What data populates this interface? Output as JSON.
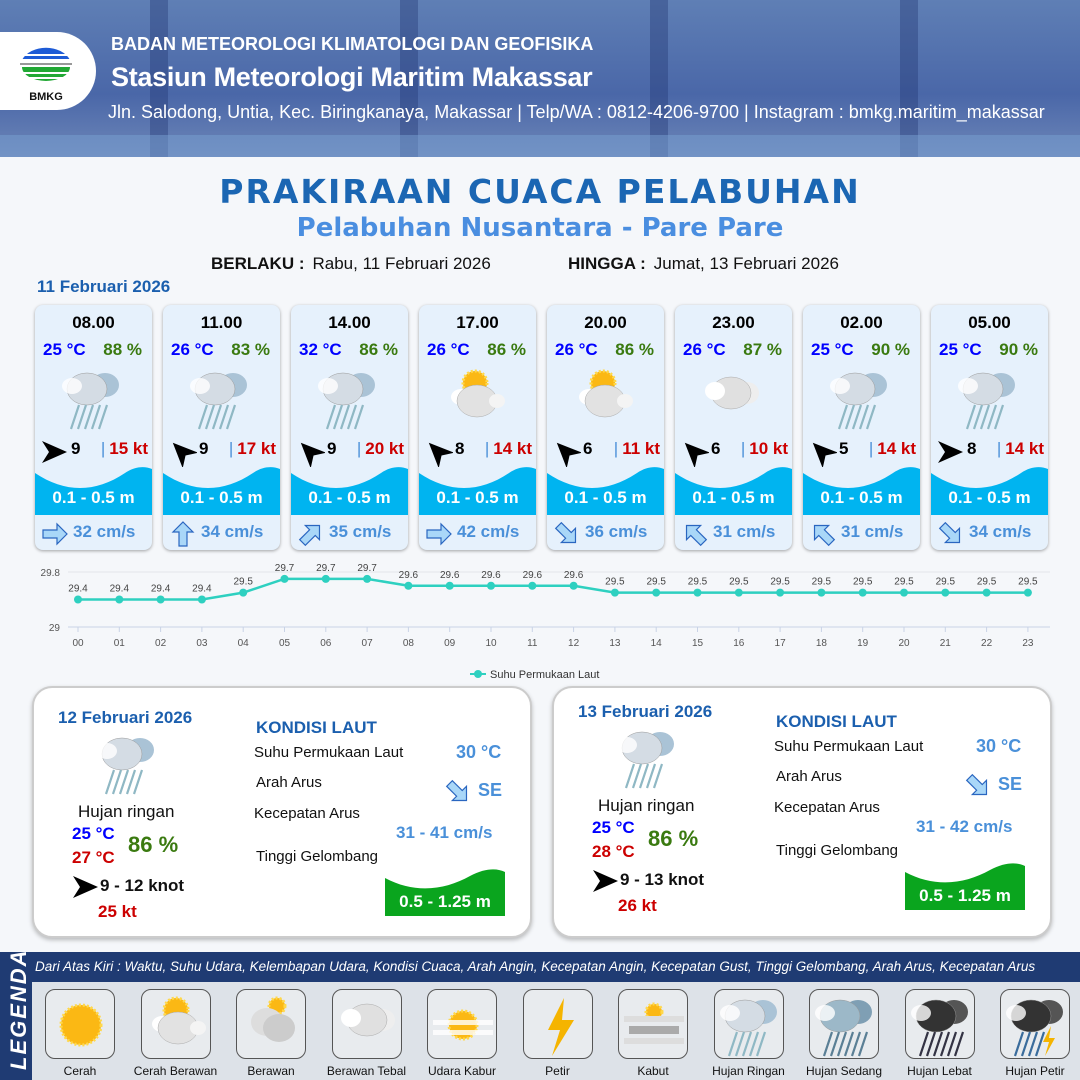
{
  "header": {
    "org": "BADAN METEOROLOGI KLIMATOLOGI DAN GEOFISIKA",
    "station": "Stasiun Meteorologi Maritim Makassar",
    "address": "Jln. Salodong, Untia, Kec. Biringkanaya, Makassar | Telp/WA : 0812-4206-9700 | Instagram : bmkg.maritim_makassar",
    "logo_text": "BMKG"
  },
  "title": "PRAKIRAAN CUACA PELABUHAN",
  "subtitle": "Pelabuhan Nusantara - Pare Pare",
  "validity": {
    "from_label": "BERLAKU :",
    "from": "Rabu, 11 Februari 2026",
    "to_label": "HINGGA :",
    "to": "Jumat, 13 Februari 2026"
  },
  "day1": {
    "date": "11 Februari 2026",
    "forecasts": [
      {
        "time": "08.00",
        "temp": "25 °C",
        "rh": "88 %",
        "weather": "hujan-ringan",
        "wind_dir_deg": 90,
        "wind": "9",
        "gust": "15 kt",
        "wave": "0.1 - 0.5 m",
        "current_dir_deg": 90,
        "current": "32 cm/s"
      },
      {
        "time": "11.00",
        "temp": "26 °C",
        "rh": "83 %",
        "weather": "hujan-ringan",
        "wind_dir_deg": 315,
        "wind": "9",
        "gust": "17 kt",
        "wave": "0.1 - 0.5 m",
        "current_dir_deg": 0,
        "current": "34 cm/s"
      },
      {
        "time": "14.00",
        "temp": "32 °C",
        "rh": "86 %",
        "weather": "hujan-ringan",
        "wind_dir_deg": 315,
        "wind": "9",
        "gust": "20 kt",
        "wave": "0.1 - 0.5 m",
        "current_dir_deg": 45,
        "current": "35 cm/s"
      },
      {
        "time": "17.00",
        "temp": "26 °C",
        "rh": "86 %",
        "weather": "cerah-berawan",
        "wind_dir_deg": 315,
        "wind": "8",
        "gust": "14 kt",
        "wave": "0.1 - 0.5 m",
        "current_dir_deg": 90,
        "current": "42 cm/s"
      },
      {
        "time": "20.00",
        "temp": "26 °C",
        "rh": "86 %",
        "weather": "cerah-berawan",
        "wind_dir_deg": 315,
        "wind": "6",
        "gust": "11 kt",
        "wave": "0.1 - 0.5 m",
        "current_dir_deg": 135,
        "current": "36 cm/s"
      },
      {
        "time": "23.00",
        "temp": "26 °C",
        "rh": "87 %",
        "weather": "berawan-tebal",
        "wind_dir_deg": 315,
        "wind": "6",
        "gust": "10 kt",
        "wave": "0.1 - 0.5 m",
        "current_dir_deg": 315,
        "current": "31 cm/s"
      },
      {
        "time": "02.00",
        "temp": "25 °C",
        "rh": "90 %",
        "weather": "hujan-ringan",
        "wind_dir_deg": 315,
        "wind": "5",
        "gust": "14 kt",
        "wave": "0.1 - 0.5 m",
        "current_dir_deg": 315,
        "current": "31 cm/s"
      },
      {
        "time": "05.00",
        "temp": "25 °C",
        "rh": "90 %",
        "weather": "hujan-ringan",
        "wind_dir_deg": 90,
        "wind": "8",
        "gust": "14 kt",
        "wave": "0.1 - 0.5 m",
        "current_dir_deg": 135,
        "current": "34 cm/s"
      }
    ]
  },
  "chart_data": {
    "type": "line",
    "categories": [
      "00",
      "01",
      "02",
      "03",
      "04",
      "05",
      "06",
      "07",
      "08",
      "09",
      "10",
      "11",
      "12",
      "13",
      "14",
      "15",
      "16",
      "17",
      "18",
      "19",
      "20",
      "21",
      "22",
      "23"
    ],
    "series": [
      {
        "name": "Suhu Permukaan Laut",
        "values": [
          29.4,
          29.4,
          29.4,
          29.4,
          29.5,
          29.7,
          29.7,
          29.7,
          29.6,
          29.6,
          29.6,
          29.6,
          29.6,
          29.5,
          29.5,
          29.5,
          29.5,
          29.5,
          29.5,
          29.5,
          29.5,
          29.5,
          29.5,
          29.5
        ],
        "color": "#2ed0c0"
      }
    ],
    "ylim": [
      29,
      29.8
    ],
    "yticks": [
      "29",
      "29.8"
    ],
    "legend": "bottom"
  },
  "days": [
    {
      "date": "12 Februari 2026",
      "weather": "hujan-ringan",
      "weather_label": "Hujan ringan",
      "tmin": "25 °C",
      "tmax": "27 °C",
      "rh": "86 %",
      "wind": "9  - 12 knot",
      "gust": "25 kt",
      "sea_title": "KONDISI LAUT",
      "sst_label": "Suhu Permukaan Laut",
      "sst": "30 °C",
      "cur_dir_label": "Arah Arus",
      "cur_dir": "SE",
      "cur_speed_label": "Kecepatan Arus",
      "cur_speed": "31 - 41 cm/s",
      "wave_label": "Tinggi Gelombang",
      "wave": "0.5 - 1.25 m"
    },
    {
      "date": "13 Februari 2026",
      "weather": "hujan-ringan",
      "weather_label": "Hujan ringan",
      "tmin": "25 °C",
      "tmax": "28 °C",
      "rh": "86 %",
      "wind": "9  - 13 knot",
      "gust": "26 kt",
      "sea_title": "KONDISI LAUT",
      "sst_label": "Suhu Permukaan Laut",
      "sst": "30 °C",
      "cur_dir_label": "Arah Arus",
      "cur_dir": "SE",
      "cur_speed_label": "Kecepatan Arus",
      "cur_speed": "31 - 42 cm/s",
      "wave_label": "Tinggi Gelombang",
      "wave": "0.5 - 1.25 m"
    }
  ],
  "legend": {
    "title": "LEGENDA",
    "description": "Dari Atas Kiri : Waktu, Suhu Udara, Kelembapan Udara, Kondisi Cuaca, Arah Angin, Kecepatan Angin, Kecepatan Gust, Tinggi Gelombang, Arah Arus, Kecepatan Arus",
    "items": [
      {
        "icon": "cerah",
        "label": "Cerah"
      },
      {
        "icon": "cerah-berawan",
        "label": "Cerah Berawan"
      },
      {
        "icon": "berawan",
        "label": "Berawan"
      },
      {
        "icon": "berawan-tebal",
        "label": "Berawan Tebal"
      },
      {
        "icon": "udara-kabur",
        "label": "Udara Kabur"
      },
      {
        "icon": "petir",
        "label": "Petir"
      },
      {
        "icon": "kabut",
        "label": "Kabut"
      },
      {
        "icon": "hujan-ringan",
        "label": "Hujan Ringan"
      },
      {
        "icon": "hujan-sedang",
        "label": "Hujan Sedang"
      },
      {
        "icon": "hujan-lebat",
        "label": "Hujan Lebat"
      },
      {
        "icon": "hujan-petir",
        "label": "Hujan Petir"
      }
    ]
  },
  "colors": {
    "primary": "#1b66b3",
    "temp": "#0000ff",
    "humidity": "#3a7a10",
    "gust": "#cc0000",
    "wave_day1": "#00b4f0",
    "wave_days": "#0aa51e",
    "legend_bar": "#1f3b73"
  }
}
